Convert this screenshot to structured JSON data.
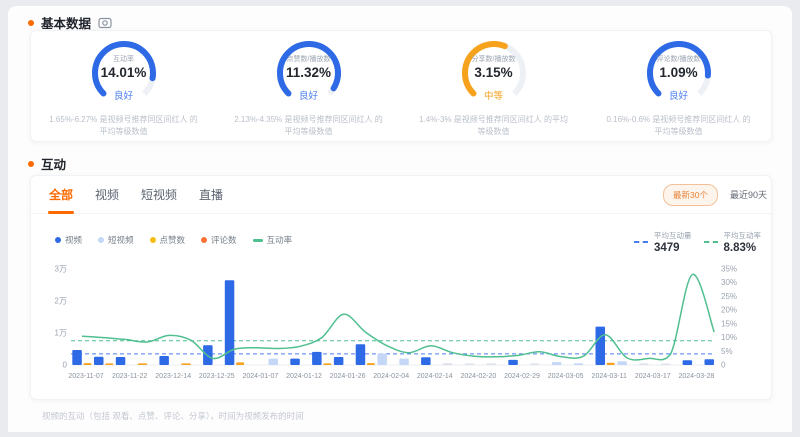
{
  "section_basic": {
    "title": "基本数据",
    "bullet_color": "#ff6a00",
    "header_icon": "camera-icon",
    "gauges": [
      {
        "label": "互动率",
        "value": "14.01%",
        "status": "良好",
        "status_color": "#4a7cf0",
        "arc_color": "#2e6ae6",
        "fill": 0.87,
        "desc": "1.65%-6.27% 是视频号推荐同区间红人 的平均等级数值"
      },
      {
        "label": "点赞数/播放数",
        "value": "11.32%",
        "status": "良好",
        "status_color": "#4a7cf0",
        "arc_color": "#2e6ae6",
        "fill": 0.95,
        "desc": "2.13%-4.35% 是视频号推荐同区间红人 的平均等级数值"
      },
      {
        "label": "分享数/播放数",
        "value": "3.15%",
        "status": "中等",
        "status_color": "#f6a21d",
        "arc_color": "#f6a21d",
        "fill": 0.58,
        "desc": "1.4%-3% 是视频号推荐同区间红人 的平均等级数值"
      },
      {
        "label": "评论数/播放数",
        "value": "1.09%",
        "status": "良好",
        "status_color": "#4a7cf0",
        "arc_color": "#2e6ae6",
        "fill": 0.85,
        "desc": "0.16%-0.6% 是视频号推荐同区间红人 的平均等级数值"
      }
    ]
  },
  "section_interact": {
    "title": "互动",
    "tabs": [
      {
        "label": "全部",
        "active": true
      },
      {
        "label": "视频",
        "active": false
      },
      {
        "label": "短视频",
        "active": false
      },
      {
        "label": "直播",
        "active": false
      }
    ],
    "range_buttons": [
      {
        "label": "最新30个",
        "active": true
      },
      {
        "label": "最近90天",
        "active": false
      }
    ],
    "legend": [
      {
        "label": "视频",
        "color": "#2e6ae6",
        "type": "dot"
      },
      {
        "label": "短视频",
        "color": "#c5d7f7",
        "type": "dot"
      },
      {
        "label": "点赞数",
        "color": "#f6bd16",
        "type": "dot"
      },
      {
        "label": "评论数",
        "color": "#f77234",
        "type": "dot"
      },
      {
        "label": "互动率",
        "color": "#4fbf8f",
        "type": "line"
      }
    ],
    "stats": [
      {
        "label": "平均互动量",
        "value": "3479",
        "line_color": "#4a7cf0"
      },
      {
        "label": "平均互动率",
        "value": "8.83%",
        "line_color": "#4fbf8f"
      }
    ],
    "chart_data": {
      "type": "bar+line",
      "x_tick_labels": [
        "2023-11-07",
        "2023-11-22",
        "2023-12-14",
        "2023-12-25",
        "2024-01-07",
        "2024-01-12",
        "2024-01-26",
        "2024-02-04",
        "2024-02-14",
        "2024-02-20",
        "2024-02-29",
        "2024-03-05",
        "2024-03-11",
        "2024-03-17",
        "2024-03-28"
      ],
      "bars": {
        "values": [
          4700,
          2600,
          2500,
          500,
          2800,
          500,
          6200,
          26500,
          0,
          2000,
          2000,
          4100,
          2500,
          6500,
          3600,
          2000,
          2400,
          600,
          500,
          500,
          1600,
          500,
          900,
          500,
          12000,
          1200,
          500,
          400,
          1500,
          1800
        ],
        "series": [
          "video",
          "video",
          "video",
          "like",
          "video",
          "like",
          "video",
          "video",
          "other",
          "short_video",
          "video",
          "video",
          "video",
          "video",
          "short_video",
          "short_video",
          "video",
          "other",
          "other",
          "other",
          "video",
          "other",
          "short_video",
          "short_video",
          "video",
          "short_video",
          "other",
          "other",
          "video",
          "video"
        ],
        "secondary_values": [
          600,
          500,
          0,
          0,
          0,
          0,
          0,
          800,
          0,
          0,
          0,
          500,
          0,
          600,
          0,
          0,
          0,
          0,
          0,
          0,
          0,
          0,
          0,
          0,
          700,
          0,
          0,
          0,
          0,
          0
        ],
        "secondary_series": "like"
      },
      "series_colors": {
        "video": "#2e6ae6",
        "short_video": "#c5d7f7",
        "like": "#f6a21d",
        "comment": "#f77234",
        "other": "#dfe3e9"
      },
      "line": {
        "name": "互动率",
        "color": "#4fbf8f",
        "values_percent": [
          10.5,
          10.0,
          9.3,
          8.4,
          10.8,
          9.0,
          2.4,
          5.8,
          6.3,
          6.0,
          6.8,
          10.0,
          18.5,
          12.0,
          7.0,
          4.5,
          7.0,
          4.5,
          3.2,
          3.0,
          3.5,
          4.8,
          3.0,
          3.2,
          11.0,
          2.6,
          2.4,
          4.0,
          33.0,
          12.0
        ]
      },
      "y_left": {
        "labels": [
          "3万",
          "2万",
          "1万",
          "0"
        ],
        "max": 30000
      },
      "y_right": {
        "labels": [
          "35%",
          "30%",
          "25%",
          "20%",
          "15%",
          "10%",
          "5%",
          "0"
        ],
        "max": 35
      },
      "avg_lines": [
        {
          "name": "平均互动量",
          "value": 3479,
          "axis": "left",
          "color": "#4a7cf0"
        },
        {
          "name": "平均互动率",
          "value": 8.83,
          "axis": "right",
          "color": "#4fbf8f"
        }
      ]
    }
  },
  "footer_note": "视频的互动（包括 观看、点赞、评论、分享），时间为视频发布的时间"
}
